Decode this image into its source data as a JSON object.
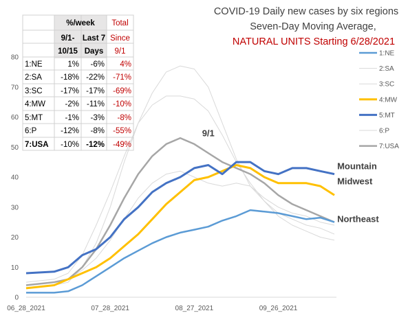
{
  "chart_data": {
    "type": "line",
    "title": [
      "COVID-19 Daily new cases by six regions",
      "Seven-Day Moving Average,"
    ],
    "subtitle": "NATURAL UNITS Starting 6/28/2021",
    "x_tick_labels": [
      "06_28_2021",
      "07_28_2021",
      "08_27_2021",
      "09_26_2021"
    ],
    "x_ticks_day": [
      0,
      30,
      60,
      90
    ],
    "x_range_days": [
      0,
      110
    ],
    "ylim": [
      0,
      80
    ],
    "y_ticks": [
      0,
      10,
      20,
      30,
      40,
      50,
      60,
      70,
      80
    ],
    "grid": false,
    "legend_position": "right",
    "series": [
      {
        "name": "1:NE",
        "color": "#5b9bd5",
        "width": 2.5,
        "x": [
          0,
          10,
          15,
          20,
          25,
          30,
          35,
          40,
          45,
          50,
          55,
          60,
          65,
          70,
          75,
          80,
          85,
          90,
          95,
          100,
          105,
          110
        ],
        "values": [
          1.5,
          1.5,
          2,
          4,
          7,
          10,
          13,
          15.5,
          18,
          20,
          21.5,
          22.5,
          23.5,
          25.5,
          27,
          29,
          28.5,
          28,
          27,
          26,
          26.5,
          25
        ]
      },
      {
        "name": "2:SA",
        "color": "#d9d9d9",
        "width": 1,
        "x": [
          0,
          10,
          15,
          20,
          25,
          30,
          35,
          40,
          45,
          50,
          55,
          60,
          65,
          70,
          75,
          80,
          85,
          90,
          95,
          100,
          105,
          110
        ],
        "values": [
          3,
          4,
          5,
          10,
          18,
          30,
          45,
          58,
          68,
          75,
          77,
          76,
          70,
          58,
          46,
          37,
          32,
          28,
          26,
          24,
          23,
          21
        ]
      },
      {
        "name": "3:SC",
        "color": "#d9d9d9",
        "width": 1,
        "x": [
          0,
          10,
          15,
          20,
          25,
          30,
          35,
          40,
          45,
          50,
          55,
          60,
          65,
          70,
          75,
          80,
          85,
          90,
          95,
          100,
          105,
          110
        ],
        "values": [
          5,
          6,
          8,
          14,
          24,
          35,
          47,
          58,
          64,
          67,
          67,
          66,
          62,
          54,
          45,
          38,
          32,
          27,
          24,
          22,
          20,
          19
        ]
      },
      {
        "name": "4:MW",
        "color": "#ffc000",
        "width": 3,
        "x": [
          0,
          10,
          15,
          20,
          25,
          30,
          35,
          40,
          45,
          50,
          55,
          60,
          65,
          70,
          75,
          80,
          85,
          90,
          95,
          100,
          105,
          110
        ],
        "values": [
          3,
          4,
          6,
          8,
          10,
          13,
          17,
          21,
          26,
          31,
          35,
          39,
          40,
          42,
          44,
          43,
          40,
          38,
          38,
          38,
          37,
          34
        ]
      },
      {
        "name": "5:MT",
        "color": "#4472c4",
        "width": 3,
        "x": [
          0,
          10,
          15,
          20,
          25,
          30,
          35,
          40,
          45,
          50,
          55,
          60,
          65,
          70,
          75,
          80,
          85,
          90,
          95,
          100,
          105,
          110
        ],
        "values": [
          8,
          8.5,
          10,
          14,
          16,
          20,
          26,
          30,
          35,
          38,
          40,
          43,
          44,
          41,
          45,
          45,
          42,
          41,
          43,
          43,
          42,
          41
        ]
      },
      {
        "name": "6:P",
        "color": "#d9d9d9",
        "width": 1,
        "x": [
          0,
          10,
          15,
          20,
          25,
          30,
          35,
          40,
          45,
          50,
          55,
          60,
          65,
          70,
          75,
          80,
          85,
          90,
          95,
          100,
          105,
          110
        ],
        "values": [
          4,
          5,
          6,
          9,
          13,
          19,
          26,
          33,
          38,
          41,
          42,
          40,
          38,
          37,
          38,
          37,
          33,
          30,
          28,
          27,
          25,
          24
        ]
      },
      {
        "name": "7:USA",
        "color": "#a6a6a6",
        "width": 2.5,
        "x": [
          0,
          10,
          15,
          20,
          25,
          30,
          35,
          40,
          45,
          50,
          55,
          60,
          65,
          70,
          75,
          80,
          85,
          90,
          95,
          100,
          105,
          110
        ],
        "values": [
          4,
          5,
          6,
          10,
          16,
          24,
          33,
          41,
          47,
          51,
          53,
          51,
          48,
          45,
          43,
          41,
          38,
          34,
          31,
          29,
          27,
          25
        ]
      }
    ],
    "annotations": [
      {
        "text": "9/1",
        "x": 65,
        "y": 54.5
      },
      {
        "text": "Mountain",
        "x": 111,
        "y": 43.5
      },
      {
        "text": "Midwest",
        "x": 111,
        "y": 38.5
      },
      {
        "text": "Northeast",
        "x": 111,
        "y": 26
      }
    ],
    "table": {
      "header_row1": [
        "",
        "%/week",
        "",
        "Total"
      ],
      "header_row2": [
        "",
        "9/1-",
        "Last 7",
        "Since"
      ],
      "header_row3": [
        "",
        "10/15",
        "Days",
        "9/1"
      ],
      "rows": [
        {
          "region": "1:NE",
          "period": "1%",
          "last7": "-6%",
          "total": "4%"
        },
        {
          "region": "2:SA",
          "period": "-18%",
          "last7": "-22%",
          "total": "-71%"
        },
        {
          "region": "3:SC",
          "period": "-17%",
          "last7": "-17%",
          "total": "-69%"
        },
        {
          "region": "4:MW",
          "period": "-2%",
          "last7": "-11%",
          "total": "-10%"
        },
        {
          "region": "5:MT",
          "period": "-1%",
          "last7": "-3%",
          "total": "-8%"
        },
        {
          "region": "6:P",
          "period": "-12%",
          "last7": "-8%",
          "total": "-55%"
        },
        {
          "region": "7:USA",
          "period": "-10%",
          "last7": "-12%",
          "total": "-49%"
        }
      ]
    }
  }
}
